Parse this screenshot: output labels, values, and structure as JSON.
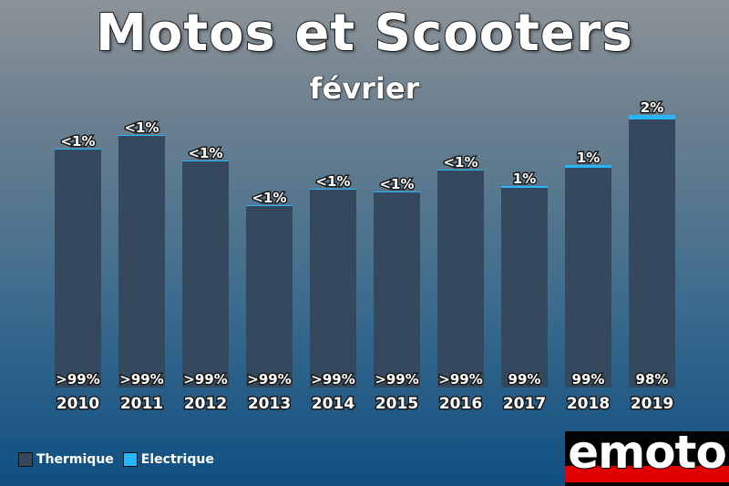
{
  "header": {
    "title": "Motos et Scooters",
    "subtitle": "février"
  },
  "legend": [
    {
      "label": "Thermique",
      "color": "#34495e"
    },
    {
      "label": "Electrique",
      "color": "#29b6f6"
    }
  ],
  "logo": {
    "text": "emoto"
  },
  "chart_data": {
    "type": "bar",
    "stacked": true,
    "title": "Motos et Scooters",
    "subtitle": "février",
    "categories": [
      "2010",
      "2011",
      "2012",
      "2013",
      "2014",
      "2015",
      "2016",
      "2017",
      "2018",
      "2019"
    ],
    "series": [
      {
        "name": "Thermique",
        "color": "#34495e",
        "values": [
          261,
          276,
          248,
          199,
          217,
          214,
          238,
          219,
          241,
          294
        ],
        "labels": [
          ">99%",
          ">99%",
          ">99%",
          ">99%",
          ">99%",
          ">99%",
          ">99%",
          "99%",
          "99%",
          "98%"
        ]
      },
      {
        "name": "Electrique",
        "color": "#29b6f6",
        "values": [
          1,
          1,
          1,
          1,
          1,
          1,
          1,
          2,
          3,
          5
        ],
        "labels": [
          "<1%",
          "<1%",
          "<1%",
          "<1%",
          "<1%",
          "<1%",
          "<1%",
          "1%",
          "1%",
          "2%"
        ]
      }
    ],
    "ylim": [
      0,
      300
    ],
    "grid": false,
    "legend_position": "bottom-left"
  }
}
